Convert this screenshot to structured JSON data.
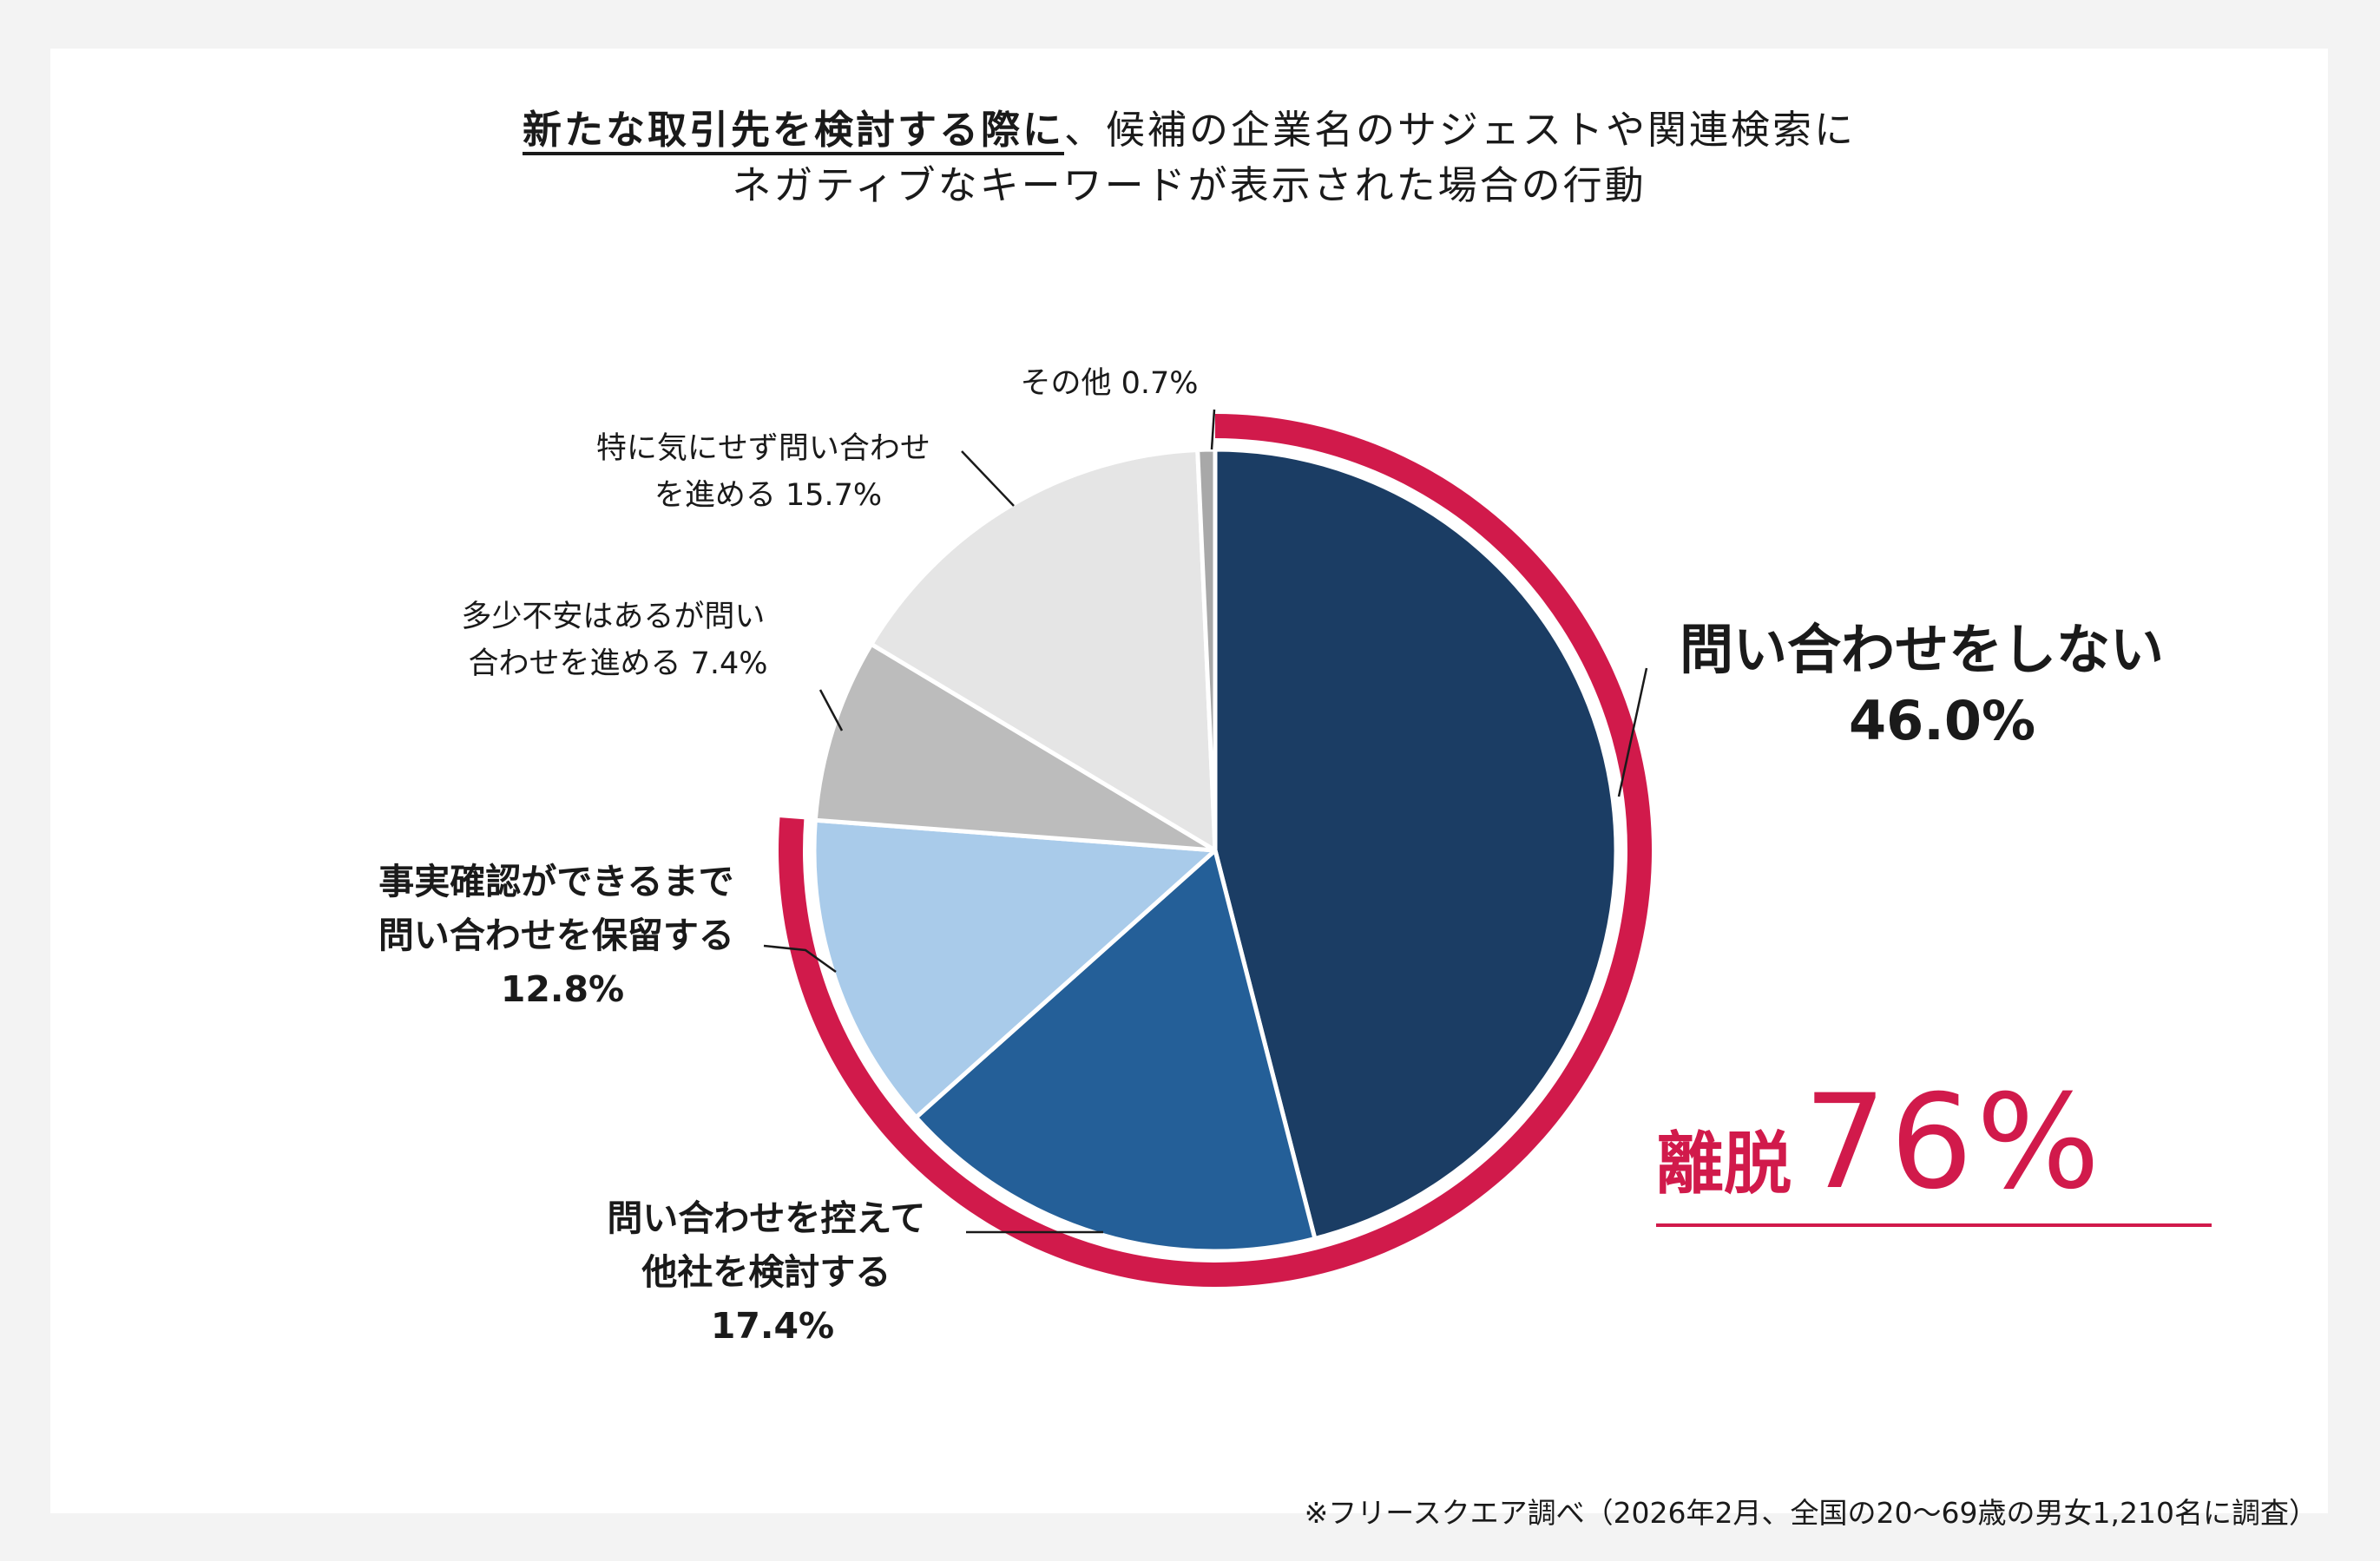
{
  "title": {
    "emphasis": "新たな取引先を検討する際に",
    "line1_rest": "、候補の企業名のサジェストや関連検索に",
    "line2": "ネガティブなキーワードが表示された場合の行動"
  },
  "chart_data": {
    "type": "pie",
    "start": "12 o'clock, clockwise",
    "slices": [
      {
        "key": "no_inquiry",
        "lines": [
          "問い合わせをしない"
        ],
        "pct_label": "46.0%",
        "value": 46.0,
        "color": "#1b3d64"
      },
      {
        "key": "other_company",
        "lines": [
          "問い合わせを控えて",
          "他社を検討する"
        ],
        "pct_label": "17.4%",
        "value": 17.4,
        "color": "#245f98"
      },
      {
        "key": "hold",
        "lines": [
          "事実確認ができるまで",
          "問い合わせを保留する"
        ],
        "pct_label": "12.8%",
        "value": 12.8,
        "color": "#a9cbea"
      },
      {
        "key": "anxious_proceed",
        "lines": [
          "多少不安はあるが問い",
          "合わせを進める 7.4%"
        ],
        "value": 7.4,
        "color": "#bcbcbc"
      },
      {
        "key": "no_concern",
        "lines": [
          "特に気にせず問い合わせ",
          "を進める 15.7%"
        ],
        "value": 15.7,
        "color": "#e5e5e5"
      },
      {
        "key": "other",
        "lines": [
          "その他 0.7%"
        ],
        "value": 0.7,
        "color": "#a8a8a8"
      }
    ],
    "highlight": {
      "label": "離脱",
      "value_label": "76%",
      "value": 76,
      "includes": [
        "no_inquiry",
        "other_company",
        "hold"
      ],
      "color": "#d11a4b"
    }
  },
  "footnote": "※フリースクエア調べ（2026年2月、全国の20～69歳の男女1,210名に調査）"
}
